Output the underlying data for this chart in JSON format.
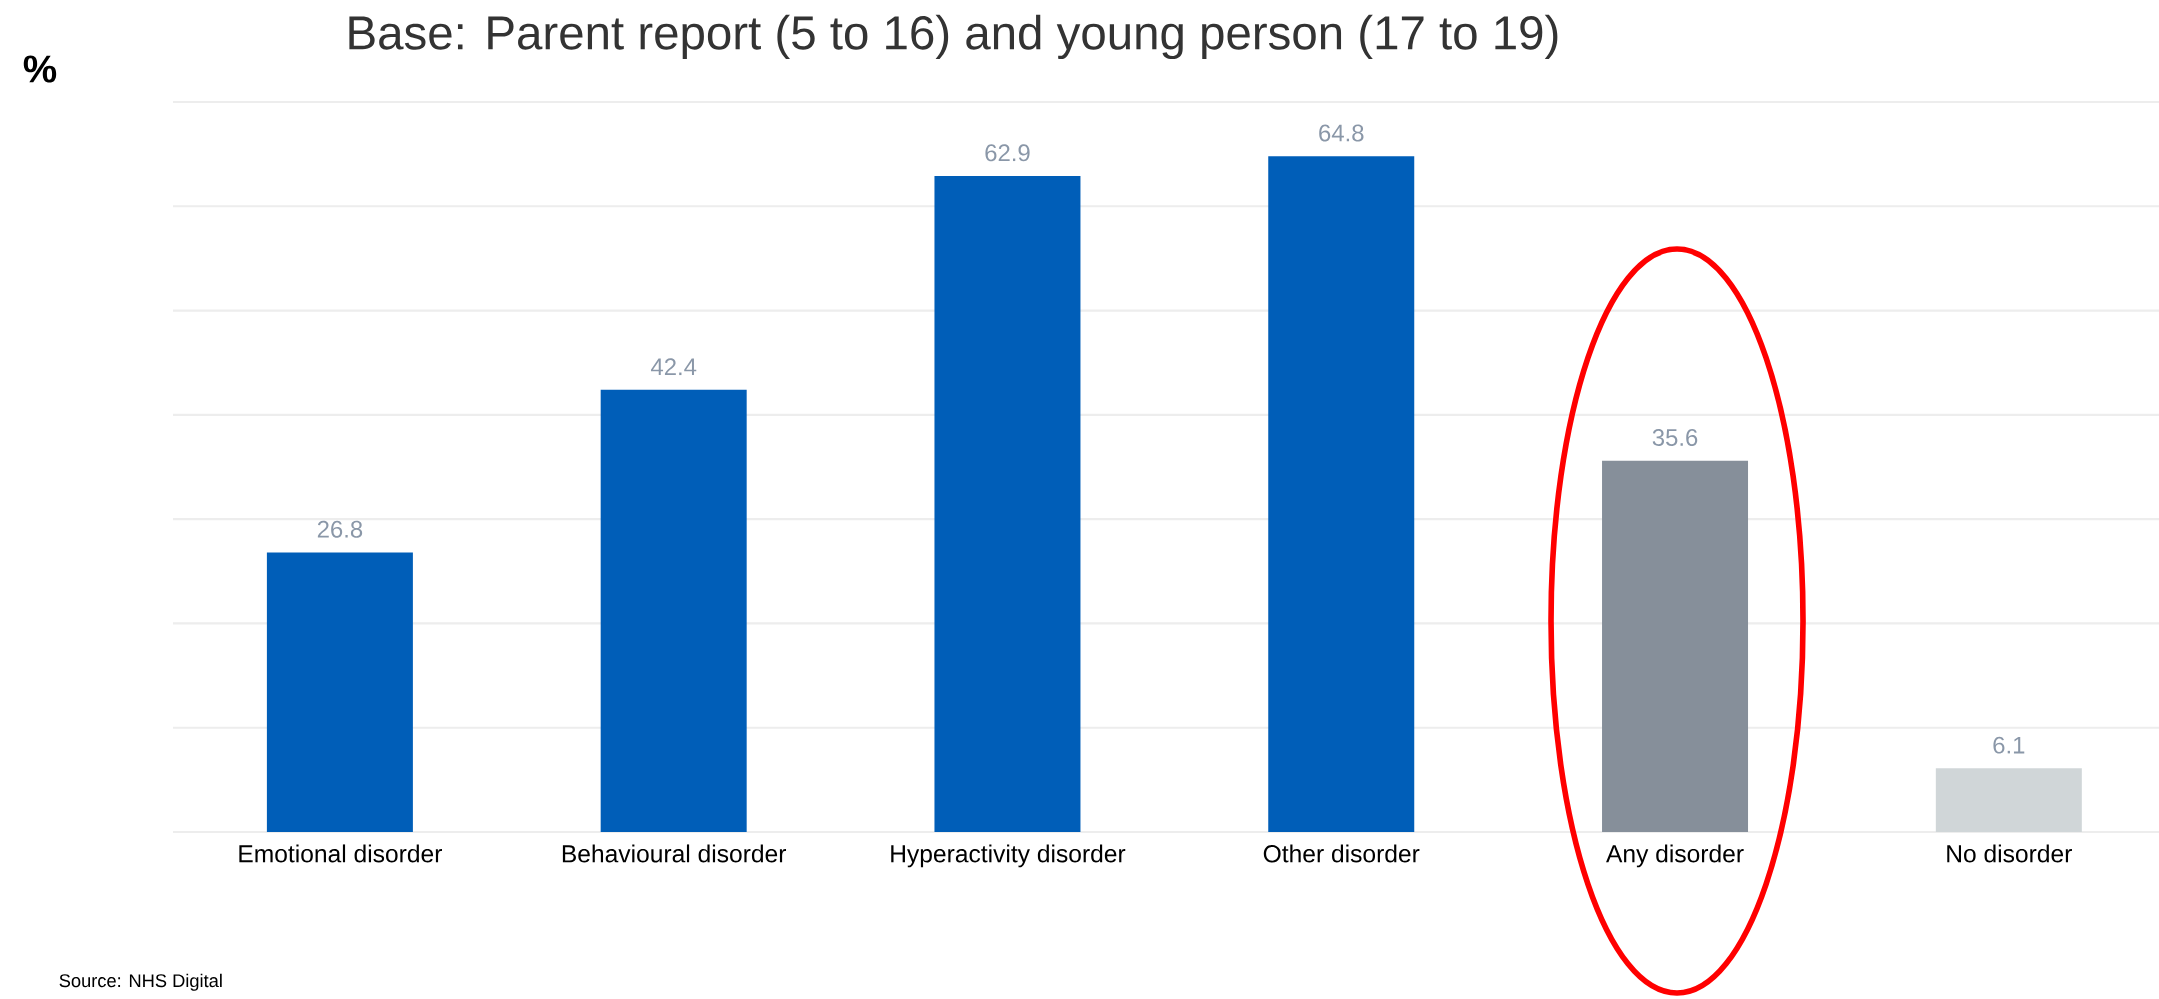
{
  "chart_data": {
    "type": "bar",
    "title": "Base: Parent report (5 to 16) and young person (17 to 19)",
    "ylabel": "%",
    "categories": [
      "Emotional disorder",
      "Behavioural disorder",
      "Hyperactivity disorder",
      "Other disorder",
      "Any disorder",
      "No disorder"
    ],
    "values": [
      26.8,
      42.4,
      62.9,
      64.8,
      35.6,
      6.1
    ],
    "colors": [
      "#005eb8",
      "#005eb8",
      "#005eb8",
      "#005eb8",
      "#868f9a",
      "#d0d6d8"
    ],
    "ylim": [
      0,
      70
    ],
    "yticks": [
      {
        "value": 0,
        "label": null
      },
      {
        "value": 10,
        "label": null
      },
      {
        "value": 20,
        "label": null
      },
      {
        "value": 30,
        "label": null
      },
      {
        "value": 40,
        "label": null
      },
      {
        "value": 50,
        "label": null
      },
      {
        "value": 60,
        "label": null
      },
      {
        "value": 70,
        "label": null
      }
    ],
    "tick_labels": "x",
    "grid": "y",
    "data_labels": true,
    "annotations": [
      "Source: NHS Digital"
    ]
  }
}
